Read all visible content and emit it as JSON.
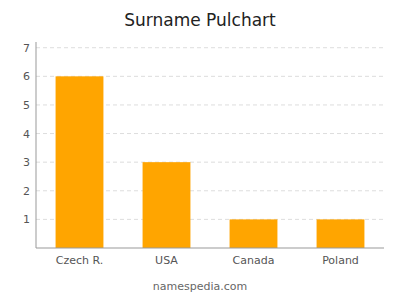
{
  "chart_data": {
    "type": "bar",
    "title": "Surname Pulchart",
    "categories": [
      "Czech R.",
      "USA",
      "Canada",
      "Poland"
    ],
    "values": [
      6,
      3,
      1,
      1
    ],
    "color": "#FFA500",
    "ylim": [
      0,
      7.2
    ],
    "yticks": [
      1,
      2,
      3,
      4,
      5,
      6,
      7
    ],
    "grid": true,
    "annotations": [
      "namespedia.com"
    ]
  }
}
